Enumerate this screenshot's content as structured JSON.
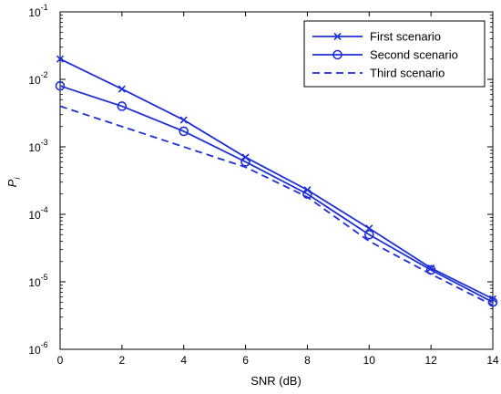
{
  "chart_data": {
    "type": "line",
    "title": "",
    "xlabel": "SNR (dB)",
    "ylabel_main": "P",
    "ylabel_sub": "i",
    "y_scale": "log",
    "xlim": [
      0,
      14
    ],
    "ylim": [
      1e-06,
      0.1
    ],
    "x_ticks": [
      0,
      2,
      4,
      6,
      8,
      10,
      12,
      14
    ],
    "x_tick_labels": [
      "0",
      "2",
      "4",
      "6",
      "8",
      "10",
      "12",
      "14"
    ],
    "y_ticks": [
      {
        "value": 0.1,
        "base": "10",
        "exp": "-1"
      },
      {
        "value": 0.01,
        "base": "10",
        "exp": "-2"
      },
      {
        "value": 0.001,
        "base": "10",
        "exp": "-3"
      },
      {
        "value": 0.0001,
        "base": "10",
        "exp": "-4"
      },
      {
        "value": 1e-05,
        "base": "10",
        "exp": "-5"
      },
      {
        "value": 1e-06,
        "base": "10",
        "exp": "-6"
      }
    ],
    "grid": false,
    "legend_position": "top-right",
    "x": [
      0,
      2,
      4,
      6,
      8,
      10,
      12,
      14
    ],
    "series": [
      {
        "name": "First scenario",
        "marker": "x",
        "line_style": "solid",
        "color": "#1f2fd6",
        "values": [
          0.02,
          0.0072,
          0.0025,
          0.0007,
          0.00023,
          6.2e-05,
          1.6e-05,
          5.6e-06
        ]
      },
      {
        "name": "Second scenario",
        "marker": "circle",
        "line_style": "solid",
        "color": "#1f2fd6",
        "values": [
          0.008,
          0.004,
          0.0017,
          0.0006,
          0.0002,
          5e-05,
          1.5e-05,
          5e-06
        ]
      },
      {
        "name": "Third scenario",
        "marker": "none",
        "line_style": "dashed",
        "color": "#1f2fd6",
        "values": [
          0.004,
          0.002,
          0.001,
          0.0005,
          0.00018,
          4e-05,
          1.3e-05,
          4.5e-06
        ]
      }
    ]
  }
}
